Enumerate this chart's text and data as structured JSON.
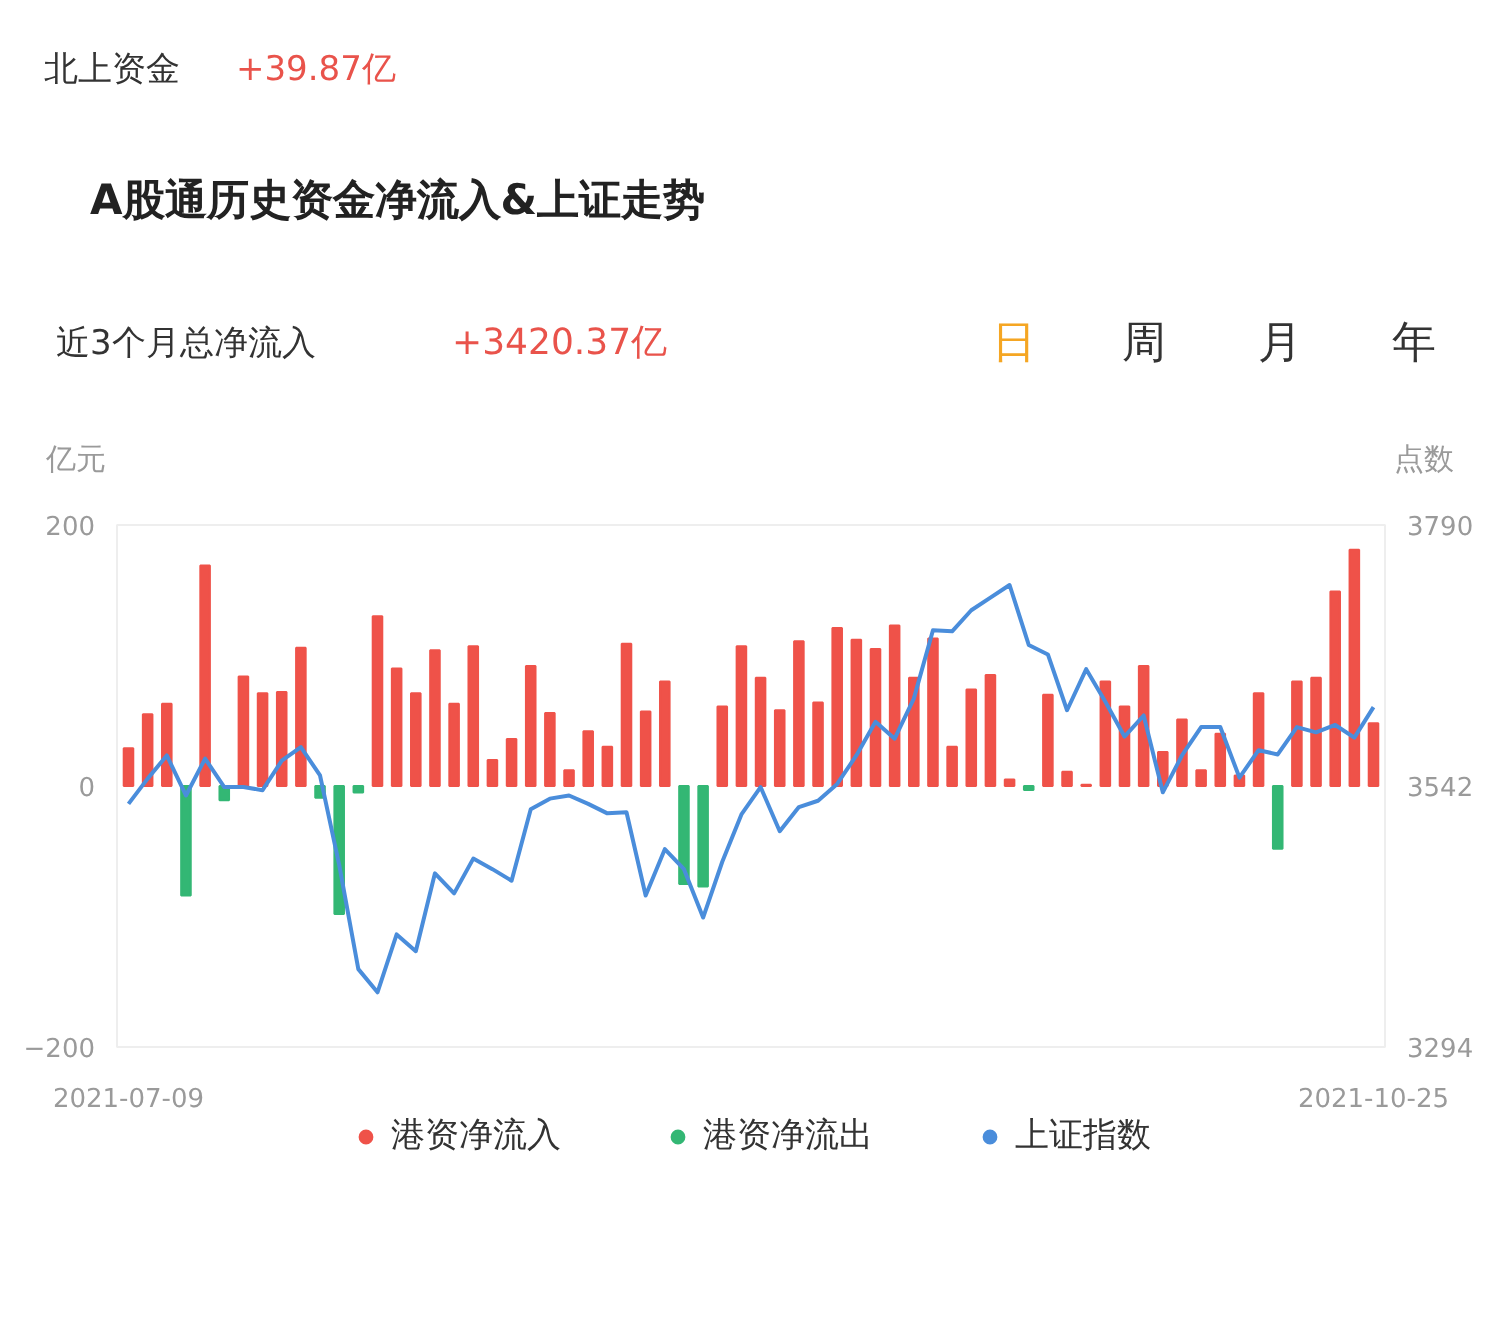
{
  "chart_data": {
    "type": "bar",
    "title": "A股通历史资金净流入&上证走势",
    "annotations": [
      "北上资金",
      "+39.87亿",
      "近3个月总净流入",
      "+3420.37亿",
      "日",
      "周",
      "月",
      "年"
    ],
    "ylabel": "亿元",
    "y2label": "点数",
    "categories": [
      "2021-07-09",
      null,
      null,
      null,
      null,
      null,
      null,
      null,
      null,
      null,
      null,
      null,
      null,
      null,
      null,
      null,
      null,
      null,
      null,
      null,
      null,
      null,
      null,
      null,
      null,
      null,
      null,
      null,
      null,
      null,
      null,
      null,
      null,
      null,
      null,
      null,
      null,
      null,
      null,
      null,
      null,
      null,
      null,
      null,
      null,
      null,
      null,
      null,
      null,
      null,
      null,
      null,
      null,
      null,
      null,
      null,
      null,
      null,
      null,
      null,
      null,
      null,
      null,
      null,
      null,
      "2021-10-25"
    ],
    "series": [
      {
        "name": "港资净流入",
        "color": "#ef5249",
        "values": [
          29,
          55,
          63,
          null,
          169,
          null,
          84,
          71,
          72,
          106,
          null,
          null,
          null,
          130,
          90,
          71,
          104,
          63,
          107,
          20,
          36,
          92,
          56,
          12,
          42,
          30,
          109,
          57,
          80,
          null,
          null,
          61,
          107,
          83,
          58,
          111,
          64,
          121,
          112,
          105,
          123,
          83,
          113,
          30,
          74,
          85,
          5,
          null,
          70,
          11,
          1,
          80,
          61,
          92,
          26,
          51,
          12,
          40,
          8,
          71,
          null,
          80,
          83,
          149,
          181,
          48
        ]
      },
      {
        "name": "港资净流出",
        "color": "#33b774",
        "values": [
          null,
          null,
          null,
          -84,
          null,
          -11,
          null,
          null,
          null,
          null,
          -9,
          -98,
          -5,
          null,
          null,
          null,
          null,
          null,
          null,
          null,
          null,
          null,
          null,
          null,
          null,
          null,
          null,
          null,
          null,
          -75,
          -77,
          null,
          null,
          null,
          null,
          null,
          null,
          null,
          null,
          null,
          null,
          null,
          null,
          null,
          null,
          null,
          null,
          -3,
          null,
          null,
          null,
          null,
          null,
          null,
          null,
          null,
          null,
          null,
          null,
          null,
          -48,
          null,
          null,
          null,
          null,
          null
        ]
      },
      {
        "name": "上证指数",
        "type": "line",
        "axis": "y2",
        "color": "#4a8ddb",
        "values": [
          3525,
          3549,
          3571,
          3533,
          3568,
          3541,
          3541,
          3538,
          3566,
          3579,
          3552,
          3467,
          3368,
          3346,
          3401,
          3385,
          3459,
          3440,
          3473,
          3463,
          3452,
          3520,
          3530,
          3533,
          3525,
          3516,
          3517,
          3438,
          3482,
          3463,
          3417,
          3470,
          3515,
          3541,
          3499,
          3522,
          3528,
          3544,
          3571,
          3603,
          3587,
          3625,
          3690,
          3689,
          3709,
          3721,
          3733,
          3676,
          3667,
          3614,
          3653,
          3622,
          3589,
          3609,
          3536,
          3571,
          3598,
          3598,
          3550,
          3576,
          3572,
          3598,
          3593,
          3600,
          3588,
          3617
        ]
      }
    ],
    "ylim": [
      -200,
      200
    ],
    "yticks": [
      -200,
      0,
      200
    ],
    "y2lim": [
      3294,
      3790
    ],
    "y2ticks": [
      3294,
      3542,
      3790
    ],
    "legend": "bottom",
    "grid": false
  }
}
